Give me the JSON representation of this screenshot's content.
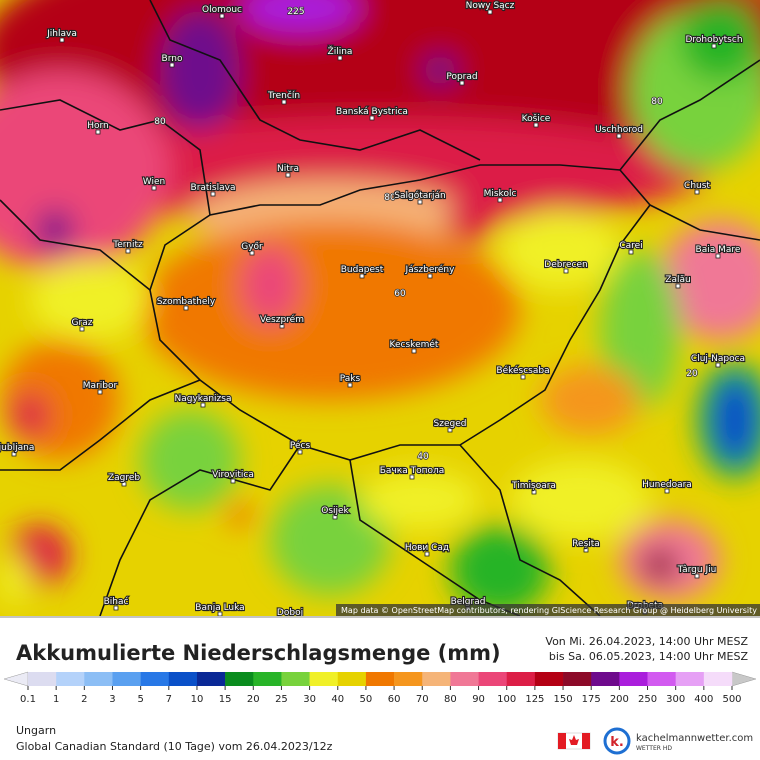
{
  "title": "Akkumulierte Niederschlagsmenge (mm)",
  "period": [
    "Von Mi. 26.04.2023, 14:00 Uhr MESZ",
    "bis Sa. 06.05.2023, 14:00 Uhr MESZ"
  ],
  "region": "Ungarn",
  "model": "Global Canadian Standard (10 Tage) vom 26.04.2023/12z",
  "brand": {
    "name": "kachelmannwetter.com",
    "tagline": "WETTER HD"
  },
  "attribution": "Map data © OpenStreetMap contributors, rendering GIScience Research Group @ Heidelberg University",
  "scale": {
    "ticks": [
      0.1,
      1,
      2,
      3,
      5,
      7,
      10,
      15,
      20,
      25,
      30,
      40,
      50,
      60,
      70,
      80,
      90,
      100,
      125,
      150,
      175,
      200,
      250,
      300,
      400,
      500
    ],
    "colors": [
      "#dcdcf0",
      "#b4d2fa",
      "#8cbef5",
      "#5aa0f0",
      "#2878e6",
      "#0a50c8",
      "#0a2896",
      "#0a8c1e",
      "#28b428",
      "#78d23c",
      "#f0f028",
      "#e6d200",
      "#f07800",
      "#f5961e",
      "#f5b478",
      "#f07896",
      "#eb4678",
      "#dc1e46",
      "#b40014",
      "#8c0a28",
      "#6e0a8c",
      "#aa1edc",
      "#d25af0",
      "#e6a0f5",
      "#f5dcfa"
    ],
    "below_color": "#ebebf5",
    "above_color": "#c8c8c8"
  },
  "contour_labels": [
    "225",
    "80",
    "80",
    "80",
    "60",
    "40",
    "20"
  ],
  "cities": [
    "Olomouc",
    "Nowy Sącz",
    "Jihlava",
    "Brno",
    "Žilina",
    "Poprad",
    "Drohobytsch",
    "Trenčín",
    "Banská Bystrica",
    "Košice",
    "Uschhorod",
    "Horn",
    "Nitra",
    "Wien",
    "Bratislava",
    "Salgótarján",
    "Miskolc",
    "Chust",
    "Ternitz",
    "Győr",
    "Carei",
    "Baia Mare",
    "Budapest",
    "Jászberény",
    "Debrecen",
    "Szombathely",
    "Zalău",
    "Graz",
    "Veszprém",
    "Kecskemét",
    "Cluj-Napoca",
    "Maribor",
    "Paks",
    "Békéscsaba",
    "Nagykanizsa",
    "Szeged",
    "Ljubljana",
    "Pécs",
    "Бачка Топола",
    "Zagreb",
    "Virovitica",
    "Timișoara",
    "Hunedoara",
    "Osijek",
    "Нови Сад",
    "Reșita",
    "Târgu Jiu",
    "Bihać",
    "Banja Luka",
    "Doboj",
    "Belgrad",
    "Drobeta"
  ]
}
